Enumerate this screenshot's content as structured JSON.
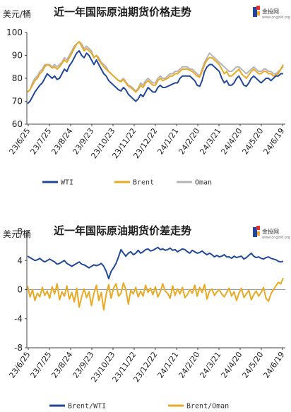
{
  "brand": {
    "name": "金投网",
    "sub": "www.cngold.org"
  },
  "colors": {
    "wti": "#21479a",
    "brent": "#e9a923",
    "oman": "#b5b5b5",
    "brent_wti": "#21479a",
    "brent_oman": "#e9a923",
    "axis": "#444444"
  },
  "chart_data": [
    {
      "type": "line",
      "title": "近一年国际原油期货价格走势",
      "unit_label": "美元/桶",
      "ylim": [
        60,
        100
      ],
      "yticks": [
        60,
        70,
        80,
        90,
        100
      ],
      "x_tick_labels": [
        "23/6/25",
        "23/7/25",
        "23/8/24",
        "23/9/23",
        "23/10/23",
        "23/11/22",
        "23/12/22",
        "24/1/21",
        "24/2/20",
        "24/3/21",
        "24/4/20",
        "24/5/20",
        "24/6/19"
      ],
      "grid": false,
      "legend_position": "bottom",
      "series": [
        {
          "name": "WTI",
          "key": "wti",
          "values": [
            69,
            70,
            72,
            74,
            75.5,
            77,
            78,
            80,
            82,
            81,
            80,
            81,
            79.5,
            80,
            82,
            84,
            83,
            85.5,
            87,
            89,
            91,
            92,
            90,
            89,
            91,
            90,
            88,
            86,
            88,
            86,
            84,
            82,
            81,
            79,
            78,
            77,
            76,
            75,
            74.5,
            76,
            75,
            73,
            72,
            71,
            70,
            71,
            73,
            72,
            74,
            76,
            75,
            74,
            74,
            76,
            77,
            76,
            76,
            76.5,
            77,
            77.5,
            78,
            78,
            80,
            81,
            81,
            81,
            81,
            80,
            79,
            77,
            76.5,
            79,
            83,
            85,
            86,
            86,
            85,
            84,
            83,
            80,
            78,
            79,
            77,
            77,
            78,
            80,
            81,
            79,
            77,
            76.5,
            78,
            80,
            81,
            80,
            79,
            78,
            79,
            80,
            80,
            79,
            80,
            81,
            81,
            82,
            82
          ]
        },
        {
          "name": "Brent",
          "key": "brent",
          "values": [
            74,
            75,
            77,
            79,
            80,
            82,
            83,
            85,
            86,
            85.5,
            84.5,
            85,
            84,
            85,
            86.5,
            88,
            87,
            89,
            91,
            93,
            95,
            96,
            94,
            92,
            93,
            92,
            91,
            89,
            90,
            88,
            86.5,
            85,
            84,
            83,
            82,
            81,
            80,
            79,
            78.5,
            79.5,
            78,
            76.5,
            76,
            75,
            74,
            75,
            77,
            76,
            78,
            79,
            78,
            77,
            77,
            79,
            80,
            79,
            79.5,
            80,
            81,
            81,
            82,
            82,
            83,
            84,
            84,
            84,
            83.5,
            83,
            82,
            81,
            80.5,
            83,
            86,
            88,
            89,
            89,
            88,
            87,
            86,
            84,
            82,
            83,
            81,
            81,
            82,
            83,
            84,
            82,
            81,
            80,
            81.5,
            83,
            84,
            83,
            82,
            82,
            83,
            83,
            82,
            82,
            81,
            81.5,
            82,
            84,
            86
          ]
        },
        {
          "name": "Oman",
          "key": "oman",
          "values": [
            74,
            75,
            78,
            80,
            81,
            83,
            84,
            86,
            86,
            86,
            85,
            86,
            85,
            86,
            87,
            89,
            88,
            90,
            92,
            94,
            95,
            96,
            95,
            93,
            94,
            93,
            92,
            89,
            90,
            89,
            87,
            86,
            85,
            83,
            82,
            81,
            80,
            79,
            79,
            80,
            78.5,
            77,
            76.5,
            75.5,
            74.5,
            75.5,
            78,
            77,
            79,
            80,
            79,
            78,
            78,
            80,
            81,
            80,
            80,
            81,
            82,
            82,
            83,
            83,
            84,
            85,
            85,
            85,
            84,
            84,
            83,
            82,
            81,
            84,
            87,
            89,
            91,
            90,
            89,
            88,
            87,
            86,
            85,
            84,
            83,
            83,
            84,
            85,
            85,
            84,
            83,
            82,
            83,
            84,
            85,
            84,
            83,
            83,
            84,
            84,
            83,
            83,
            82,
            82,
            83,
            84,
            85
          ]
        }
      ]
    },
    {
      "type": "line",
      "title": "近一年国际原油期货价差走势",
      "unit_label": "美元/桶",
      "ylim": [
        -8,
        8
      ],
      "yticks": [
        -8,
        -4,
        0,
        4,
        8
      ],
      "x_tick_labels": [
        "23/6/25",
        "23/7/25",
        "23/8/24",
        "23/9/23",
        "23/10/23",
        "23/11/22",
        "23/12/22",
        "24/1/21",
        "24/2/20",
        "24/3/21",
        "24/4/20",
        "24/5/20",
        "24/6/19"
      ],
      "grid": false,
      "zero_line": true,
      "legend_position": "bottom",
      "series": [
        {
          "name": "Brent/WTI",
          "key": "brent_wti",
          "values": [
            4.6,
            4.4,
            4.2,
            4.0,
            4.1,
            4.3,
            4.0,
            3.8,
            4.0,
            4.2,
            4.0,
            3.8,
            3.5,
            3.6,
            3.8,
            4.0,
            3.6,
            3.4,
            3.2,
            3.4,
            3.6,
            3.8,
            3.5,
            3.4,
            3.2,
            3.0,
            3.2,
            3.4,
            3.3,
            3.4,
            3.6,
            3.2,
            2.5,
            1.5,
            2.5,
            3.0,
            3.6,
            4.5,
            5.5,
            5.0,
            4.6,
            5.0,
            5.2,
            4.8,
            5.0,
            5.4,
            5.0,
            5.2,
            5.5,
            5.6,
            5.3,
            5.4,
            5.6,
            5.8,
            5.5,
            5.6,
            5.4,
            5.5,
            5.7,
            5.4,
            5.5,
            5.2,
            5.4,
            5.6,
            5.5,
            5.2,
            5.0,
            5.4,
            5.2,
            5.0,
            5.1,
            5.3,
            5.0,
            4.8,
            5.0,
            4.8,
            4.5,
            4.7,
            4.5,
            4.6,
            4.8,
            4.5,
            4.5,
            4.3,
            4.6,
            4.4,
            4.5,
            4.6,
            4.2,
            4.4,
            4.7,
            5.0,
            4.6,
            4.4,
            4.5,
            4.3,
            4.2,
            4.4,
            4.5,
            4.3,
            4.2,
            4.1,
            3.9,
            3.8,
            3.9
          ]
        },
        {
          "name": "Brent/Oman",
          "key": "brent_oman",
          "values": [
            0.5,
            -1.0,
            0.0,
            -1.5,
            -0.5,
            -1.0,
            0.3,
            -0.8,
            -0.2,
            -1.2,
            0.4,
            -0.6,
            0.8,
            -1.4,
            -0.3,
            -0.9,
            0.5,
            -1.3,
            -0.4,
            -1.7,
            0.2,
            -2.4,
            -1.0,
            0.1,
            -1.1,
            -0.3,
            -2.2,
            -0.5,
            0.6,
            -1.5,
            -0.4,
            -2.8,
            -0.6,
            0.7,
            -1.2,
            0.2,
            0.8,
            -0.9,
            -0.5,
            0.9,
            0.0,
            -2.0,
            -0.1,
            -0.6,
            0.3,
            -1.0,
            -0.2,
            -0.9,
            0.6,
            -0.4,
            0.2,
            -0.7,
            0.4,
            -1.0,
            -0.3,
            0.8,
            -0.2,
            -0.5,
            -1.2,
            0.5,
            -0.8,
            0.1,
            -0.6,
            0.3,
            -1.1,
            -0.7,
            0.0,
            -0.5,
            0.6,
            -0.9,
            0.3,
            -0.4,
            0.7,
            -1.3,
            -0.2,
            0.1,
            -0.8,
            -0.3,
            0.0,
            -0.6,
            -1.0,
            -0.4,
            0.2,
            -0.9,
            -0.3,
            -1.5,
            -0.5,
            0.2,
            -1.1,
            -0.6,
            -0.1,
            -1.4,
            -0.7,
            -0.2,
            -0.9,
            -0.4,
            0.3,
            -1.2,
            -1.6,
            -0.6,
            0.0,
            0.5,
            1.0,
            0.8,
            1.6
          ]
        }
      ]
    }
  ]
}
